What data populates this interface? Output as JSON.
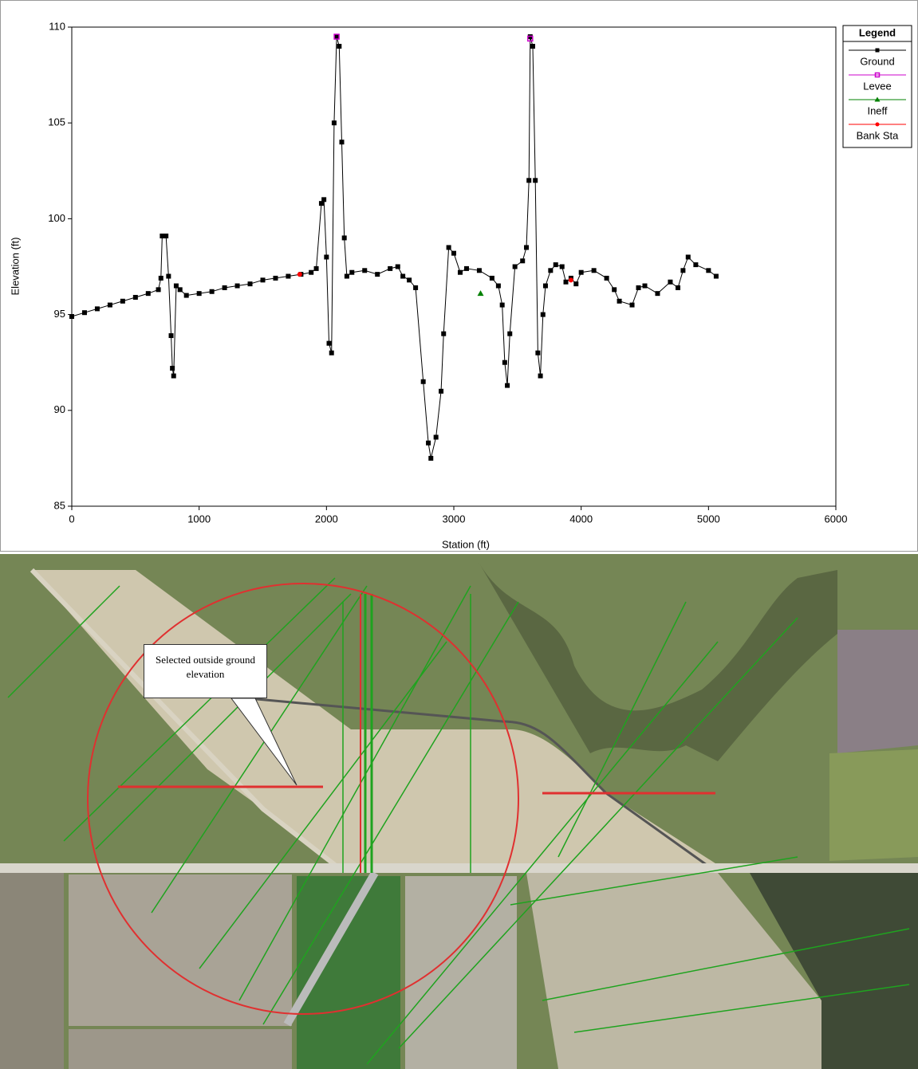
{
  "chart_data": {
    "type": "line",
    "xlabel": "Station (ft)",
    "ylabel": "Elevation (ft)",
    "legend_title": "Legend",
    "xlim": [
      0,
      6000
    ],
    "xticks": [
      0,
      1000,
      2000,
      3000,
      4000,
      5000,
      6000
    ],
    "ylim": [
      85,
      110
    ],
    "yticks": [
      85,
      90,
      95,
      100,
      105,
      110
    ],
    "legend_position": "right",
    "series": [
      {
        "name": "Ground",
        "color": "#000000",
        "marker": "square",
        "line": true,
        "x": [
          0,
          100,
          200,
          300,
          400,
          500,
          600,
          680,
          700,
          710,
          740,
          760,
          780,
          790,
          800,
          820,
          850,
          900,
          1000,
          1100,
          1200,
          1300,
          1400,
          1500,
          1600,
          1700,
          1800,
          1880,
          1920,
          1960,
          1980,
          2000,
          2020,
          2040,
          2060,
          2080,
          2100,
          2120,
          2140,
          2160,
          2200,
          2300,
          2400,
          2500,
          2560,
          2600,
          2650,
          2700,
          2760,
          2800,
          2820,
          2860,
          2900,
          2920,
          2960,
          3000,
          3050,
          3100,
          3200,
          3300,
          3350,
          3380,
          3400,
          3420,
          3440,
          3480,
          3540,
          3570,
          3590,
          3600,
          3620,
          3640,
          3660,
          3680,
          3700,
          3720,
          3760,
          3800,
          3850,
          3880,
          3920,
          3960,
          4000,
          4100,
          4200,
          4260,
          4300,
          4400,
          4450,
          4500,
          4600,
          4700,
          4760,
          4800,
          4840,
          4900,
          5000,
          5060
        ],
        "values": [
          94.9,
          95.1,
          95.3,
          95.5,
          95.7,
          95.9,
          96.1,
          96.3,
          96.9,
          99.1,
          99.1,
          97.0,
          93.9,
          92.2,
          91.8,
          96.5,
          96.3,
          96.0,
          96.1,
          96.2,
          96.4,
          96.5,
          96.6,
          96.8,
          96.9,
          97.0,
          97.1,
          97.2,
          97.4,
          100.8,
          101.0,
          98.0,
          93.5,
          93.0,
          105.0,
          109.5,
          109.0,
          104.0,
          99.0,
          97.0,
          97.2,
          97.3,
          97.1,
          97.4,
          97.5,
          97.0,
          96.8,
          96.4,
          91.5,
          88.3,
          87.5,
          88.6,
          91.0,
          94.0,
          98.5,
          98.2,
          97.2,
          97.4,
          97.3,
          96.9,
          96.5,
          95.5,
          92.5,
          91.3,
          94.0,
          97.5,
          97.8,
          98.5,
          102.0,
          109.5,
          109.0,
          102.0,
          93.0,
          91.8,
          95.0,
          96.5,
          97.3,
          97.6,
          97.5,
          96.7,
          96.9,
          96.6,
          97.2,
          97.3,
          96.9,
          96.3,
          95.7,
          95.5,
          96.4,
          96.5,
          96.1,
          96.7,
          96.4,
          97.3,
          98.0,
          97.6,
          97.3,
          97.0
        ]
      },
      {
        "name": "Levee",
        "color": "#cc00cc",
        "marker": "open-square",
        "line": false,
        "x": [
          2080,
          3600
        ],
        "values": [
          109.5,
          109.4
        ]
      },
      {
        "name": "Ineff",
        "color": "#008000",
        "marker": "triangle",
        "line": false,
        "x": [
          3210
        ],
        "values": [
          96.1
        ]
      },
      {
        "name": "Bank Sta",
        "color": "#ff0000",
        "marker": "circle",
        "line": false,
        "x": [
          1790,
          3920
        ],
        "values": [
          97.1,
          96.8
        ]
      }
    ]
  },
  "map": {
    "callout": "Selected outside ground elevation"
  }
}
